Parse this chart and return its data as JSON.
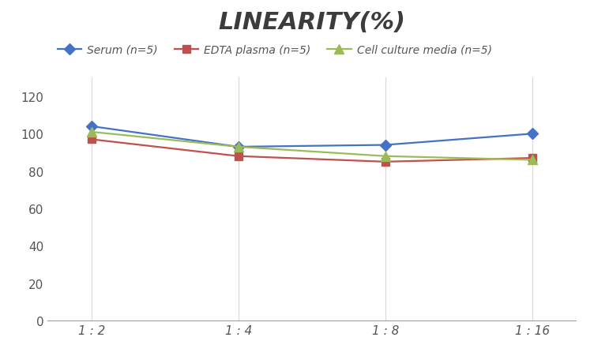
{
  "title": "LINEARITY(%)",
  "x_labels": [
    "1 : 2",
    "1 : 4",
    "1 : 8",
    "1 : 16"
  ],
  "x_positions": [
    0,
    1,
    2,
    3
  ],
  "series": [
    {
      "label": "Serum (n=5)",
      "values": [
        104,
        93,
        94,
        100
      ],
      "color": "#4472C4",
      "marker": "D",
      "markersize": 7,
      "linewidth": 1.6
    },
    {
      "label": "EDTA plasma (n=5)",
      "values": [
        97,
        88,
        85,
        87
      ],
      "color": "#C0504D",
      "marker": "s",
      "markersize": 7,
      "linewidth": 1.6
    },
    {
      "label": "Cell culture media (n=5)",
      "values": [
        101,
        93,
        88,
        86
      ],
      "color": "#9BBB59",
      "marker": "^",
      "markersize": 8,
      "linewidth": 1.6
    }
  ],
  "ylim": [
    0,
    130
  ],
  "yticks": [
    0,
    20,
    40,
    60,
    80,
    100,
    120
  ],
  "background_color": "#FFFFFF",
  "grid_color": "#D8D8D8",
  "title_fontsize": 22,
  "title_style": "italic",
  "title_weight": "bold",
  "title_color": "#3C3C3C",
  "legend_fontsize": 10,
  "tick_fontsize": 11,
  "tick_color": "#555555"
}
